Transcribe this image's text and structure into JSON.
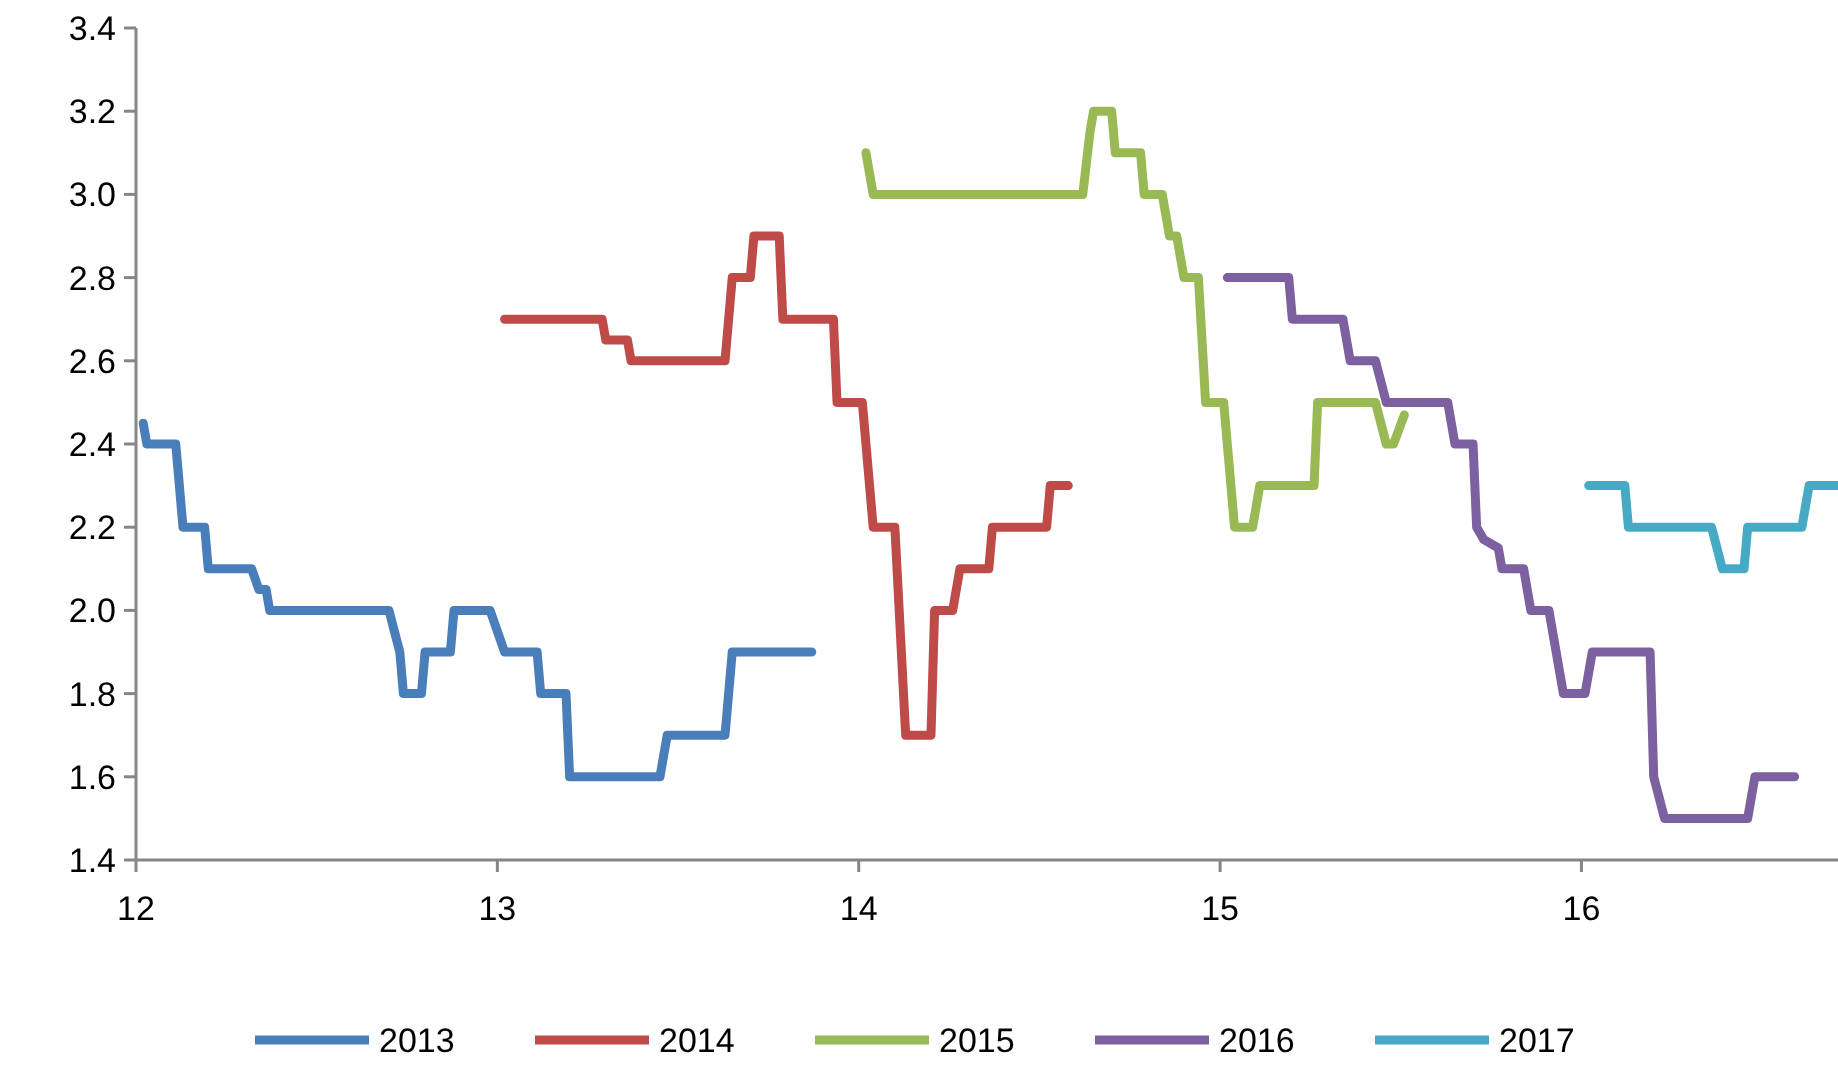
{
  "chart_data": {
    "type": "line",
    "xlim": [
      12,
      16.71
    ],
    "xticks": [
      12,
      13,
      14,
      15,
      16
    ],
    "ylim": [
      1.4,
      3.4
    ],
    "yticks": [
      {
        "value": 1.4,
        "label": "1.4"
      },
      {
        "value": 1.6,
        "label": "1.6"
      },
      {
        "value": 1.8,
        "label": "1.8"
      },
      {
        "value": 2.0,
        "label": "2.0"
      },
      {
        "value": 2.2,
        "label": "2.2"
      },
      {
        "value": 2.4,
        "label": "2.4"
      },
      {
        "value": 2.6,
        "label": "2.6"
      },
      {
        "value": 2.8,
        "label": "2.8"
      },
      {
        "value": 3.0,
        "label": "3.0"
      },
      {
        "value": 3.2,
        "label": "3.2"
      },
      {
        "value": 3.4,
        "label": "3.4"
      }
    ],
    "grid": false,
    "legend": "bottom",
    "marker": "none",
    "line_style": "solid",
    "series": [
      {
        "name": "2013",
        "color": "#4a7ebb",
        "x": [
          12.02,
          12.03,
          12.11,
          12.13,
          12.19,
          12.2,
          12.32,
          12.34,
          12.36,
          12.37,
          12.7,
          12.73,
          12.74,
          12.79,
          12.8,
          12.87,
          12.88,
          12.98,
          13.0,
          13.02,
          13.11,
          13.12,
          13.19,
          13.2,
          13.45,
          13.47,
          13.63,
          13.65,
          13.87
        ],
        "values": [
          2.45,
          2.4,
          2.4,
          2.2,
          2.2,
          2.1,
          2.1,
          2.05,
          2.05,
          2.0,
          2.0,
          1.9,
          1.8,
          1.8,
          1.9,
          1.9,
          2.0,
          2.0,
          1.95,
          1.9,
          1.9,
          1.8,
          1.8,
          1.6,
          1.6,
          1.7,
          1.7,
          1.9,
          1.9
        ]
      },
      {
        "name": "2014",
        "color": "#be4b48",
        "x": [
          13.02,
          13.29,
          13.3,
          13.36,
          13.37,
          13.63,
          13.65,
          13.7,
          13.71,
          13.78,
          13.79,
          13.93,
          13.94,
          14.01,
          14.04,
          14.1,
          14.13,
          14.2,
          14.21,
          14.26,
          14.28,
          14.36,
          14.37,
          14.52,
          14.53,
          14.58
        ],
        "values": [
          2.7,
          2.7,
          2.65,
          2.65,
          2.6,
          2.6,
          2.8,
          2.8,
          2.9,
          2.9,
          2.7,
          2.7,
          2.5,
          2.5,
          2.2,
          2.2,
          1.7,
          1.7,
          2.0,
          2.0,
          2.1,
          2.1,
          2.2,
          2.2,
          2.3,
          2.3
        ]
      },
      {
        "name": "2015",
        "color": "#98b954",
        "x": [
          14.02,
          14.04,
          14.62,
          14.64,
          14.65,
          14.7,
          14.71,
          14.78,
          14.79,
          14.84,
          14.86,
          14.88,
          14.9,
          14.94,
          14.96,
          15.01,
          15.04,
          15.09,
          15.11,
          15.26,
          15.27,
          15.43,
          15.46,
          15.48,
          15.51
        ],
        "values": [
          3.1,
          3.0,
          3.0,
          3.15,
          3.2,
          3.2,
          3.1,
          3.1,
          3.0,
          3.0,
          2.9,
          2.9,
          2.8,
          2.8,
          2.5,
          2.5,
          2.2,
          2.2,
          2.3,
          2.3,
          2.5,
          2.5,
          2.4,
          2.4,
          2.47
        ]
      },
      {
        "name": "2016",
        "color": "#7d60a0",
        "x": [
          15.02,
          15.19,
          15.2,
          15.34,
          15.36,
          15.43,
          15.46,
          15.63,
          15.65,
          15.7,
          15.71,
          15.73,
          15.77,
          15.78,
          15.84,
          15.86,
          15.91,
          15.95,
          16.01,
          16.03,
          16.19,
          16.2,
          16.23,
          16.46,
          16.48,
          16.59
        ],
        "values": [
          2.8,
          2.8,
          2.7,
          2.7,
          2.6,
          2.6,
          2.5,
          2.5,
          2.4,
          2.4,
          2.2,
          2.17,
          2.15,
          2.1,
          2.1,
          2.0,
          2.0,
          1.8,
          1.8,
          1.9,
          1.9,
          1.6,
          1.5,
          1.5,
          1.6,
          1.6
        ]
      },
      {
        "name": "2017",
        "color": "#46aac5",
        "x": [
          16.02,
          16.12,
          16.13,
          16.36,
          16.39,
          16.45,
          16.46,
          16.61,
          16.63,
          16.71
        ],
        "values": [
          2.3,
          2.3,
          2.2,
          2.2,
          2.1,
          2.1,
          2.2,
          2.2,
          2.3,
          2.3
        ]
      }
    ]
  }
}
